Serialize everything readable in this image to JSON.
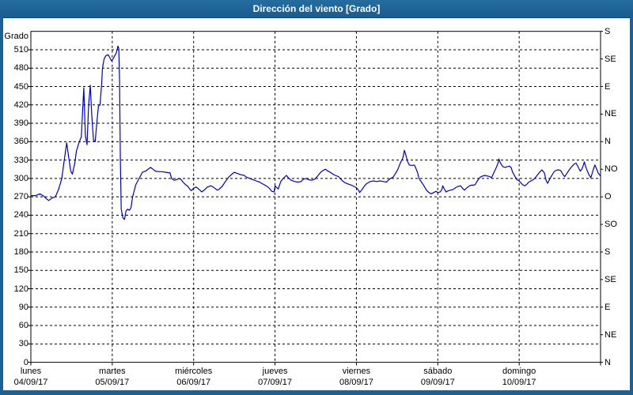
{
  "window": {
    "title": "Dirección del viento [Grado]"
  },
  "colors": {
    "frame": "#1d6194",
    "title_text": "#ffffff",
    "plot_background": "#ffffff",
    "grid": "#000000",
    "line": "#0000c8"
  },
  "chart_data": {
    "type": "line",
    "title": "Dirección del viento [Grado]",
    "ylabel": "Grado",
    "xlabel": "",
    "ylim": [
      0,
      540
    ],
    "grid": true,
    "grid_step_deg": 30,
    "legend_position": "none",
    "left_axis_ticks": [
      0,
      30,
      60,
      90,
      120,
      150,
      180,
      210,
      240,
      270,
      300,
      330,
      360,
      390,
      420,
      450,
      480,
      510
    ],
    "right_axis_ticks": [
      {
        "value": 0,
        "label": "N"
      },
      {
        "value": 45,
        "label": "NE"
      },
      {
        "value": 90,
        "label": "E"
      },
      {
        "value": 135,
        "label": "SE"
      },
      {
        "value": 180,
        "label": "S"
      },
      {
        "value": 225,
        "label": "SO"
      },
      {
        "value": 270,
        "label": "O"
      },
      {
        "value": 315,
        "label": "NO"
      },
      {
        "value": 360,
        "label": "N"
      },
      {
        "value": 405,
        "label": "NE"
      },
      {
        "value": 450,
        "label": "E"
      },
      {
        "value": 495,
        "label": "SE"
      },
      {
        "value": 540,
        "label": "S"
      }
    ],
    "x_days": [
      {
        "name": "lunes",
        "date": "04/09/17"
      },
      {
        "name": "martes",
        "date": "05/09/17"
      },
      {
        "name": "miércoles",
        "date": "06/09/17"
      },
      {
        "name": "jueves",
        "date": "07/09/17"
      },
      {
        "name": "viernes",
        "date": "08/09/17"
      },
      {
        "name": "sábado",
        "date": "09/09/17"
      },
      {
        "name": "domingo",
        "date": "10/09/17"
      }
    ],
    "series": [
      {
        "name": "Dirección del viento",
        "units": "Grado",
        "points": [
          [
            0.0,
            272
          ],
          [
            0.06,
            272
          ],
          [
            0.11,
            275
          ],
          [
            0.16,
            271
          ],
          [
            0.19,
            267
          ],
          [
            0.22,
            264
          ],
          [
            0.26,
            268
          ],
          [
            0.3,
            270
          ],
          [
            0.34,
            282
          ],
          [
            0.38,
            300
          ],
          [
            0.41,
            330
          ],
          [
            0.44,
            358
          ],
          [
            0.47,
            330
          ],
          [
            0.49,
            312
          ],
          [
            0.51,
            307
          ],
          [
            0.54,
            325
          ],
          [
            0.56,
            345
          ],
          [
            0.59,
            358
          ],
          [
            0.62,
            368
          ],
          [
            0.63,
            395
          ],
          [
            0.65,
            448
          ],
          [
            0.67,
            370
          ],
          [
            0.69,
            355
          ],
          [
            0.71,
            420
          ],
          [
            0.73,
            452
          ],
          [
            0.75,
            400
          ],
          [
            0.77,
            362
          ],
          [
            0.79,
            360
          ],
          [
            0.81,
            390
          ],
          [
            0.83,
            418
          ],
          [
            0.85,
            420
          ],
          [
            0.87,
            455
          ],
          [
            0.88,
            480
          ],
          [
            0.9,
            495
          ],
          [
            0.92,
            500
          ],
          [
            0.95,
            502
          ],
          [
            0.97,
            497
          ],
          [
            0.99,
            492
          ],
          [
            1.01,
            495
          ],
          [
            1.03,
            500
          ],
          [
            1.05,
            505
          ],
          [
            1.07,
            516
          ],
          [
            1.08,
            512
          ],
          [
            1.09,
            460
          ],
          [
            1.1,
            330
          ],
          [
            1.11,
            250
          ],
          [
            1.13,
            236
          ],
          [
            1.15,
            233
          ],
          [
            1.17,
            247
          ],
          [
            1.19,
            250
          ],
          [
            1.21,
            248
          ],
          [
            1.23,
            252
          ],
          [
            1.25,
            270
          ],
          [
            1.29,
            290
          ],
          [
            1.33,
            300
          ],
          [
            1.37,
            310
          ],
          [
            1.41,
            312
          ],
          [
            1.45,
            316
          ],
          [
            1.47,
            318
          ],
          [
            1.5,
            315
          ],
          [
            1.53,
            312
          ],
          [
            1.57,
            311
          ],
          [
            1.61,
            311
          ],
          [
            1.66,
            310
          ],
          [
            1.71,
            309
          ],
          [
            1.73,
            300
          ],
          [
            1.76,
            297
          ],
          [
            1.79,
            298
          ],
          [
            1.82,
            300
          ],
          [
            1.84,
            299
          ],
          [
            1.87,
            294
          ],
          [
            1.9,
            290
          ],
          [
            1.93,
            287
          ],
          [
            1.95,
            283
          ],
          [
            1.97,
            280
          ],
          [
            2.0,
            284
          ],
          [
            2.03,
            286
          ],
          [
            2.06,
            283
          ],
          [
            2.1,
            278
          ],
          [
            2.13,
            281
          ],
          [
            2.17,
            286
          ],
          [
            2.21,
            288
          ],
          [
            2.24,
            286
          ],
          [
            2.26,
            284
          ],
          [
            2.29,
            281
          ],
          [
            2.31,
            282
          ],
          [
            2.35,
            287
          ],
          [
            2.39,
            295
          ],
          [
            2.43,
            302
          ],
          [
            2.47,
            307
          ],
          [
            2.5,
            310
          ],
          [
            2.54,
            308
          ],
          [
            2.58,
            306
          ],
          [
            2.62,
            305
          ],
          [
            2.65,
            302
          ],
          [
            2.69,
            300
          ],
          [
            2.73,
            298
          ],
          [
            2.77,
            296
          ],
          [
            2.81,
            294
          ],
          [
            2.85,
            291
          ],
          [
            2.89,
            288
          ],
          [
            2.93,
            284
          ],
          [
            2.96,
            279
          ],
          [
            2.99,
            278
          ],
          [
            3.0,
            288
          ],
          [
            3.02,
            285
          ],
          [
            3.04,
            283
          ],
          [
            3.07,
            295
          ],
          [
            3.1,
            300
          ],
          [
            3.14,
            305
          ],
          [
            3.17,
            300
          ],
          [
            3.2,
            297
          ],
          [
            3.24,
            295
          ],
          [
            3.28,
            294
          ],
          [
            3.32,
            295
          ],
          [
            3.35,
            299
          ],
          [
            3.38,
            300
          ],
          [
            3.41,
            298
          ],
          [
            3.45,
            297
          ],
          [
            3.49,
            299
          ],
          [
            3.53,
            305
          ],
          [
            3.56,
            310
          ],
          [
            3.59,
            313
          ],
          [
            3.62,
            315
          ],
          [
            3.65,
            312
          ],
          [
            3.68,
            310
          ],
          [
            3.7,
            308
          ],
          [
            3.74,
            305
          ],
          [
            3.78,
            303
          ],
          [
            3.8,
            300
          ],
          [
            3.83,
            296
          ],
          [
            3.86,
            293
          ],
          [
            3.9,
            291
          ],
          [
            3.94,
            289
          ],
          [
            3.97,
            287
          ],
          [
            4.0,
            285
          ],
          [
            4.03,
            280
          ],
          [
            4.04,
            277
          ],
          [
            4.07,
            282
          ],
          [
            4.1,
            288
          ],
          [
            4.13,
            292
          ],
          [
            4.17,
            295
          ],
          [
            4.21,
            296
          ],
          [
            4.25,
            295
          ],
          [
            4.29,
            296
          ],
          [
            4.33,
            295
          ],
          [
            4.37,
            294
          ],
          [
            4.39,
            297
          ],
          [
            4.42,
            300
          ],
          [
            4.45,
            302
          ],
          [
            4.48,
            308
          ],
          [
            4.51,
            315
          ],
          [
            4.53,
            322
          ],
          [
            4.55,
            328
          ],
          [
            4.57,
            333
          ],
          [
            4.59,
            346
          ],
          [
            4.61,
            337
          ],
          [
            4.63,
            327
          ],
          [
            4.65,
            322
          ],
          [
            4.68,
            321
          ],
          [
            4.71,
            322
          ],
          [
            4.72,
            320
          ],
          [
            4.75,
            310
          ],
          [
            4.77,
            300
          ],
          [
            4.8,
            294
          ],
          [
            4.83,
            288
          ],
          [
            4.86,
            281
          ],
          [
            4.89,
            277
          ],
          [
            4.92,
            275
          ],
          [
            4.95,
            277
          ],
          [
            4.98,
            279
          ],
          [
            5.0,
            277
          ],
          [
            5.03,
            278
          ],
          [
            5.05,
            282
          ],
          [
            5.06,
            288
          ],
          [
            5.08,
            283
          ],
          [
            5.1,
            278
          ],
          [
            5.13,
            280
          ],
          [
            5.16,
            281
          ],
          [
            5.19,
            282
          ],
          [
            5.22,
            285
          ],
          [
            5.25,
            287
          ],
          [
            5.28,
            288
          ],
          [
            5.31,
            283
          ],
          [
            5.33,
            281
          ],
          [
            5.36,
            285
          ],
          [
            5.39,
            288
          ],
          [
            5.41,
            289
          ],
          [
            5.44,
            289
          ],
          [
            5.46,
            290
          ],
          [
            5.49,
            297
          ],
          [
            5.52,
            302
          ],
          [
            5.55,
            304
          ],
          [
            5.58,
            305
          ],
          [
            5.61,
            304
          ],
          [
            5.64,
            303
          ],
          [
            5.66,
            301
          ],
          [
            5.69,
            310
          ],
          [
            5.72,
            318
          ],
          [
            5.74,
            325
          ],
          [
            5.75,
            332
          ],
          [
            5.77,
            325
          ],
          [
            5.8,
            319
          ],
          [
            5.83,
            318
          ],
          [
            5.85,
            319
          ],
          [
            5.88,
            320
          ],
          [
            5.9,
            318
          ],
          [
            5.92,
            310
          ],
          [
            5.95,
            303
          ],
          [
            5.97,
            298
          ],
          [
            6.0,
            296
          ],
          [
            6.02,
            293
          ],
          [
            6.04,
            290
          ],
          [
            6.07,
            288
          ],
          [
            6.09,
            290
          ],
          [
            6.11,
            293
          ],
          [
            6.13,
            295
          ],
          [
            6.16,
            297
          ],
          [
            6.19,
            300
          ],
          [
            6.22,
            305
          ],
          [
            6.25,
            310
          ],
          [
            6.28,
            314
          ],
          [
            6.31,
            309
          ],
          [
            6.33,
            297
          ],
          [
            6.35,
            292
          ],
          [
            6.38,
            300
          ],
          [
            6.41,
            307
          ],
          [
            6.43,
            311
          ],
          [
            6.45,
            313
          ],
          [
            6.48,
            314
          ],
          [
            6.51,
            313
          ],
          [
            6.54,
            306
          ],
          [
            6.56,
            303
          ],
          [
            6.59,
            309
          ],
          [
            6.62,
            315
          ],
          [
            6.65,
            320
          ],
          [
            6.68,
            324
          ],
          [
            6.7,
            325
          ],
          [
            6.72,
            320
          ],
          [
            6.75,
            312
          ],
          [
            6.77,
            315
          ],
          [
            6.79,
            322
          ],
          [
            6.8,
            327
          ],
          [
            6.82,
            318
          ],
          [
            6.85,
            308
          ],
          [
            6.88,
            301
          ],
          [
            6.91,
            314
          ],
          [
            6.93,
            322
          ],
          [
            6.95,
            316
          ],
          [
            6.97,
            309
          ],
          [
            7.0,
            304
          ]
        ]
      }
    ]
  }
}
